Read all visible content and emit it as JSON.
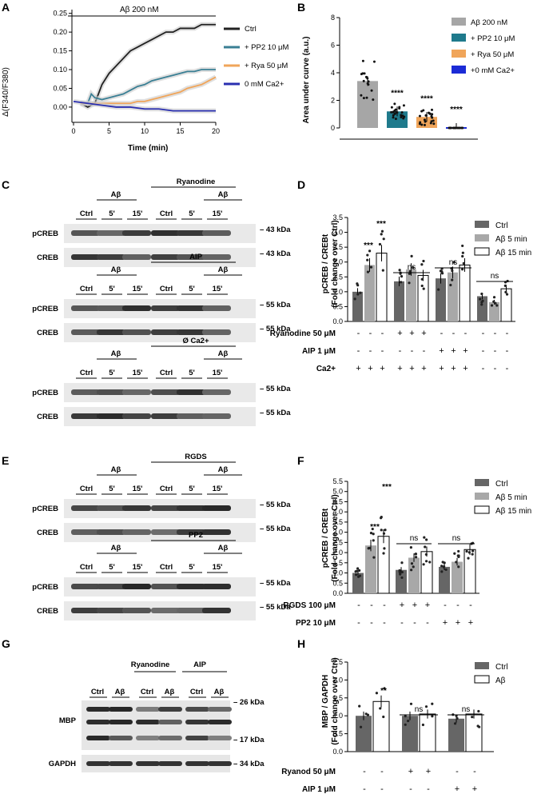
{
  "panels": [
    "A",
    "B",
    "C",
    "D",
    "E",
    "F",
    "G",
    "H"
  ],
  "panelA": {
    "title": "Aβ 200 nM",
    "ylabel": "Δ(F340/F380)",
    "xlabel": "Time (min)",
    "legend": [
      "Ctrl",
      "+ PP2 10 μM",
      "+ Rya 50 μM",
      "0 mM Ca2+"
    ],
    "colors": [
      "#222222",
      "#3a7f94",
      "#f0a55a",
      "#2a2fb0"
    ]
  },
  "panelB": {
    "ylabel": "Area under curve (a.u.)",
    "legend": [
      "Aβ 200 nM",
      "+ PP2 10 μM",
      "+ Rya 50 μM",
      "+0 mM Ca2+"
    ],
    "sig": [
      "****",
      "****",
      "****"
    ]
  },
  "panelC": {
    "blocks": [
      {
        "treat": "Ryanodine",
        "sub": "Aβ",
        "rows": [
          "pCREB",
          "CREB"
        ],
        "kda": [
          "43 kDa",
          "43 kDa"
        ]
      },
      {
        "treat": "AIP",
        "sub": "Aβ",
        "rows": [
          "pCREB",
          "CREB"
        ],
        "kda": [
          "55 kDa",
          "55 kDa"
        ]
      },
      {
        "treat": "Ø Ca2+",
        "sub": "Aβ",
        "rows": [
          "pCREB",
          "CREB"
        ],
        "kda": [
          "55 kDa",
          "55 kDa"
        ]
      }
    ],
    "lanes": [
      "Ctrl",
      "5'",
      "15'",
      "Ctrl",
      "5'",
      "15'"
    ],
    "abeta": "Aβ"
  },
  "panelD": {
    "ylabel1": "pCREB / CREBt",
    "ylabel2": "(Fold change over Ctrl)",
    "legend": [
      "Ctrl",
      "Aβ 5 min",
      "Aβ 15 min"
    ],
    "sig": [
      "***",
      "***",
      "ns",
      "ns",
      "ns"
    ],
    "conditions": [
      {
        "label": "Ryanodine 50 μM",
        "marks": [
          "-",
          "-",
          "-",
          "+",
          "+",
          "+",
          "-",
          "-",
          "-",
          "-",
          "-",
          "-"
        ]
      },
      {
        "label": "AIP 1 μM",
        "marks": [
          "-",
          "-",
          "-",
          "-",
          "-",
          "-",
          "+",
          "+",
          "+",
          "-",
          "-",
          "-"
        ]
      },
      {
        "label": "Ca2+",
        "marks": [
          "+",
          "+",
          "+",
          "+",
          "+",
          "+",
          "+",
          "+",
          "+",
          "-",
          "-",
          "-"
        ]
      }
    ]
  },
  "panelE": {
    "blocks": [
      {
        "treat": "RGDS",
        "sub": "Aβ",
        "rows": [
          "pCREB",
          "CREB"
        ],
        "kda": [
          "55 kDa",
          "55 kDa"
        ]
      },
      {
        "treat": "PP2",
        "sub": "Aβ",
        "rows": [
          "pCREB",
          "CREB"
        ],
        "kda": [
          "55 kDa",
          "55 kDa"
        ]
      }
    ]
  },
  "panelF": {
    "ylabel1": "pCREB / CREBt",
    "ylabel2": "(Fold change over Ctrl)",
    "legend": [
      "Ctrl",
      "Aβ 5 min",
      "Aβ 15 min"
    ],
    "sig": [
      "***",
      "***",
      "ns",
      "ns"
    ],
    "conditions": [
      {
        "label": "RGDS 100 μM",
        "marks": [
          "-",
          "-",
          "-",
          "+",
          "+",
          "+",
          "-",
          "-",
          "-"
        ]
      },
      {
        "label": "PP2 10 μM",
        "marks": [
          "-",
          "-",
          "-",
          "-",
          "-",
          "-",
          "+",
          "+",
          "+"
        ]
      }
    ]
  },
  "panelG": {
    "treats": [
      "Ryanodine",
      "AIP"
    ],
    "lanes": [
      "Ctrl",
      "Aβ",
      "Ctrl",
      "Aβ",
      "Ctrl",
      "Aβ"
    ],
    "rows": [
      "MBP",
      "GAPDH"
    ],
    "kda": [
      "26 kDa",
      "17 kDa",
      "34 kDa"
    ]
  },
  "panelH": {
    "ylabel1": "MBP / GAPDH",
    "ylabel2": "(Fold change over Ctrl)",
    "legend": [
      "Ctrl",
      "Aβ"
    ],
    "sig": [
      "**",
      "ns",
      "ns"
    ],
    "conditions": [
      {
        "label": "Ryanod 50 μM",
        "marks": [
          "-",
          "-",
          "+",
          "+",
          "-",
          "-"
        ]
      },
      {
        "label": "AIP 1 μM",
        "marks": [
          "-",
          "-",
          "-",
          "-",
          "+",
          "+"
        ]
      }
    ]
  },
  "chart_data": [
    {
      "type": "line",
      "xlabel": "Time (min)",
      "ylabel": "Δ(F340/F380)",
      "xlim": [
        0,
        20
      ],
      "ylim": [
        -0.03,
        0.26
      ],
      "xticks": [
        0,
        5,
        10,
        15,
        20
      ],
      "yticks": [
        0.0,
        0.05,
        0.1,
        0.15,
        0.2,
        0.25
      ],
      "series": [
        {
          "name": "Ctrl",
          "x": [
            1,
            2,
            3,
            4,
            5,
            6,
            7,
            8,
            9,
            10,
            11,
            12,
            13,
            14,
            15,
            16,
            17,
            18,
            19,
            20
          ],
          "y": [
            0.01,
            0.0,
            0.01,
            0.06,
            0.09,
            0.11,
            0.13,
            0.15,
            0.16,
            0.17,
            0.18,
            0.19,
            0.2,
            0.2,
            0.21,
            0.21,
            0.21,
            0.22,
            0.22,
            0.22
          ]
        },
        {
          "name": "+ PP2 10 μM",
          "x": [
            1,
            2,
            2.5,
            3,
            4,
            5,
            6,
            7,
            8,
            9,
            10,
            11,
            12,
            13,
            14,
            15,
            16,
            17,
            18,
            19,
            20
          ],
          "y": [
            0.01,
            0.01,
            0.035,
            0.025,
            0.02,
            0.025,
            0.03,
            0.035,
            0.045,
            0.055,
            0.06,
            0.07,
            0.075,
            0.08,
            0.085,
            0.09,
            0.095,
            0.095,
            0.1,
            0.1,
            0.1
          ]
        },
        {
          "name": "+ Rya 50 μM",
          "x": [
            1,
            2,
            3,
            4,
            5,
            6,
            7,
            8,
            9,
            10,
            11,
            12,
            13,
            14,
            15,
            16,
            17,
            18,
            19,
            20
          ],
          "y": [
            0.01,
            0.01,
            0.01,
            0.01,
            0.01,
            0.01,
            0.01,
            0.01,
            0.015,
            0.015,
            0.02,
            0.025,
            0.03,
            0.035,
            0.04,
            0.05,
            0.055,
            0.06,
            0.07,
            0.08
          ]
        },
        {
          "name": "0 mM Ca2+",
          "x": [
            0,
            2,
            4,
            6,
            8,
            10,
            12,
            14,
            16,
            18,
            20
          ],
          "y": [
            0.015,
            0.01,
            0.005,
            0.0,
            0.0,
            -0.005,
            -0.005,
            -0.01,
            -0.01,
            -0.01,
            -0.01
          ]
        }
      ]
    },
    {
      "type": "bar",
      "ylabel": "Area under curve (a.u.)",
      "categories": [
        "Aβ 200 nM",
        "+ PP2 10 μM",
        "+ Rya 50 μM",
        "+0 mM Ca2+"
      ],
      "values": [
        3.4,
        1.2,
        0.8,
        0.0
      ],
      "ylim": [
        0,
        8
      ],
      "yticks": [
        0,
        2,
        4,
        6,
        8
      ]
    },
    {
      "type": "bar",
      "ylabel": "pCREB / CREBt (Fold change over Ctrl)",
      "ylim": [
        0,
        3.5
      ],
      "yticks": [
        0,
        0.5,
        1.0,
        1.5,
        2.0,
        2.5,
        3.0,
        3.5
      ],
      "series": [
        {
          "name": "Ctrl",
          "values": [
            1.0,
            1.35,
            1.45,
            0.85
          ]
        },
        {
          "name": "Aβ 5 min",
          "values": [
            1.9,
            1.75,
            1.65,
            0.65
          ]
        },
        {
          "name": "Aβ 15 min",
          "values": [
            2.3,
            1.55,
            1.9,
            1.1
          ]
        }
      ]
    },
    {
      "type": "bar",
      "ylabel": "pCREB / CREBt (Fold change over Ctrl)",
      "ylim": [
        0,
        5.5
      ],
      "yticks": [
        0,
        0.5,
        1.0,
        1.5,
        2.0,
        2.5,
        3.0,
        3.5,
        4.0,
        4.5,
        5.0,
        5.5
      ],
      "series": [
        {
          "name": "Ctrl",
          "values": [
            1.0,
            1.15,
            1.3
          ]
        },
        {
          "name": "Aβ 5 min",
          "values": [
            2.35,
            1.75,
            1.55
          ]
        },
        {
          "name": "Aβ 15 min",
          "values": [
            2.8,
            2.05,
            2.15
          ]
        }
      ]
    },
    {
      "type": "bar",
      "ylabel": "MBP / GAPDH (Fold change over Ctrl)",
      "ylim": [
        0,
        2.5
      ],
      "yticks": [
        0,
        0.5,
        1.0,
        1.5,
        2.0,
        2.5
      ],
      "series": [
        {
          "name": "Ctrl",
          "values": [
            1.0,
            1.0,
            0.92
          ]
        },
        {
          "name": "Aβ",
          "values": [
            1.4,
            1.05,
            1.05
          ]
        }
      ]
    }
  ]
}
